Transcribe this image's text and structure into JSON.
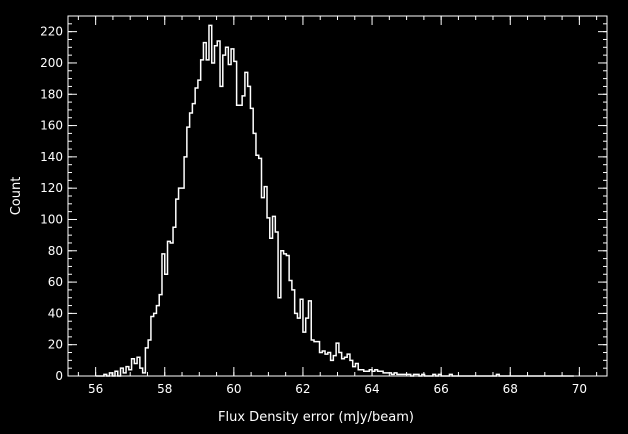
{
  "chart_data": {
    "type": "histogram",
    "title": "",
    "xlabel": "Flux Density error (mJy/beam)",
    "ylabel": "Count",
    "xlim": [
      55.2,
      70.8
    ],
    "ylim": [
      0,
      230
    ],
    "xticks": [
      56,
      58,
      60,
      62,
      64,
      66,
      68,
      70
    ],
    "yticks": [
      0,
      20,
      40,
      60,
      80,
      100,
      120,
      140,
      160,
      180,
      200,
      220
    ],
    "x_minor_step": 0.5,
    "y_minor_step": 5,
    "bin_start": 56.0,
    "bin_width": 0.08,
    "counts": [
      0,
      0,
      0,
      1,
      0,
      2,
      0,
      3,
      0,
      5,
      2,
      6,
      4,
      11,
      8,
      12,
      5,
      2,
      18,
      23,
      38,
      40,
      45,
      52,
      78,
      65,
      86,
      85,
      95,
      113,
      120,
      120,
      140,
      159,
      168,
      174,
      184,
      189,
      202,
      213,
      202,
      224,
      200,
      211,
      214,
      185,
      205,
      210,
      199,
      209,
      201,
      173,
      173,
      179,
      194,
      185,
      171,
      155,
      141,
      139,
      114,
      121,
      101,
      88,
      102,
      92,
      50,
      80,
      78,
      77,
      61,
      55,
      40,
      37,
      49,
      28,
      37,
      48,
      23,
      22,
      22,
      15,
      16,
      14,
      15,
      10,
      13,
      21,
      15,
      11,
      12,
      14,
      10,
      6,
      8,
      4,
      4,
      3,
      3,
      4,
      3,
      4,
      3,
      3,
      2,
      2,
      2,
      1,
      2,
      1,
      1,
      1,
      1,
      1,
      0,
      1,
      1,
      0,
      1,
      0,
      0,
      0,
      1,
      0,
      1,
      0,
      0,
      0,
      1,
      0,
      0,
      0,
      0,
      0,
      0,
      0,
      0,
      0,
      0,
      0,
      0,
      0,
      0,
      0,
      0,
      1,
      0,
      0,
      0,
      0,
      0,
      0,
      0,
      0,
      0,
      0,
      0,
      0,
      0,
      0,
      0,
      0,
      0,
      0,
      0,
      0,
      0,
      0,
      0,
      0,
      0,
      0,
      0
    ],
    "colors": {
      "background": "#000000",
      "foreground": "#ffffff"
    }
  }
}
